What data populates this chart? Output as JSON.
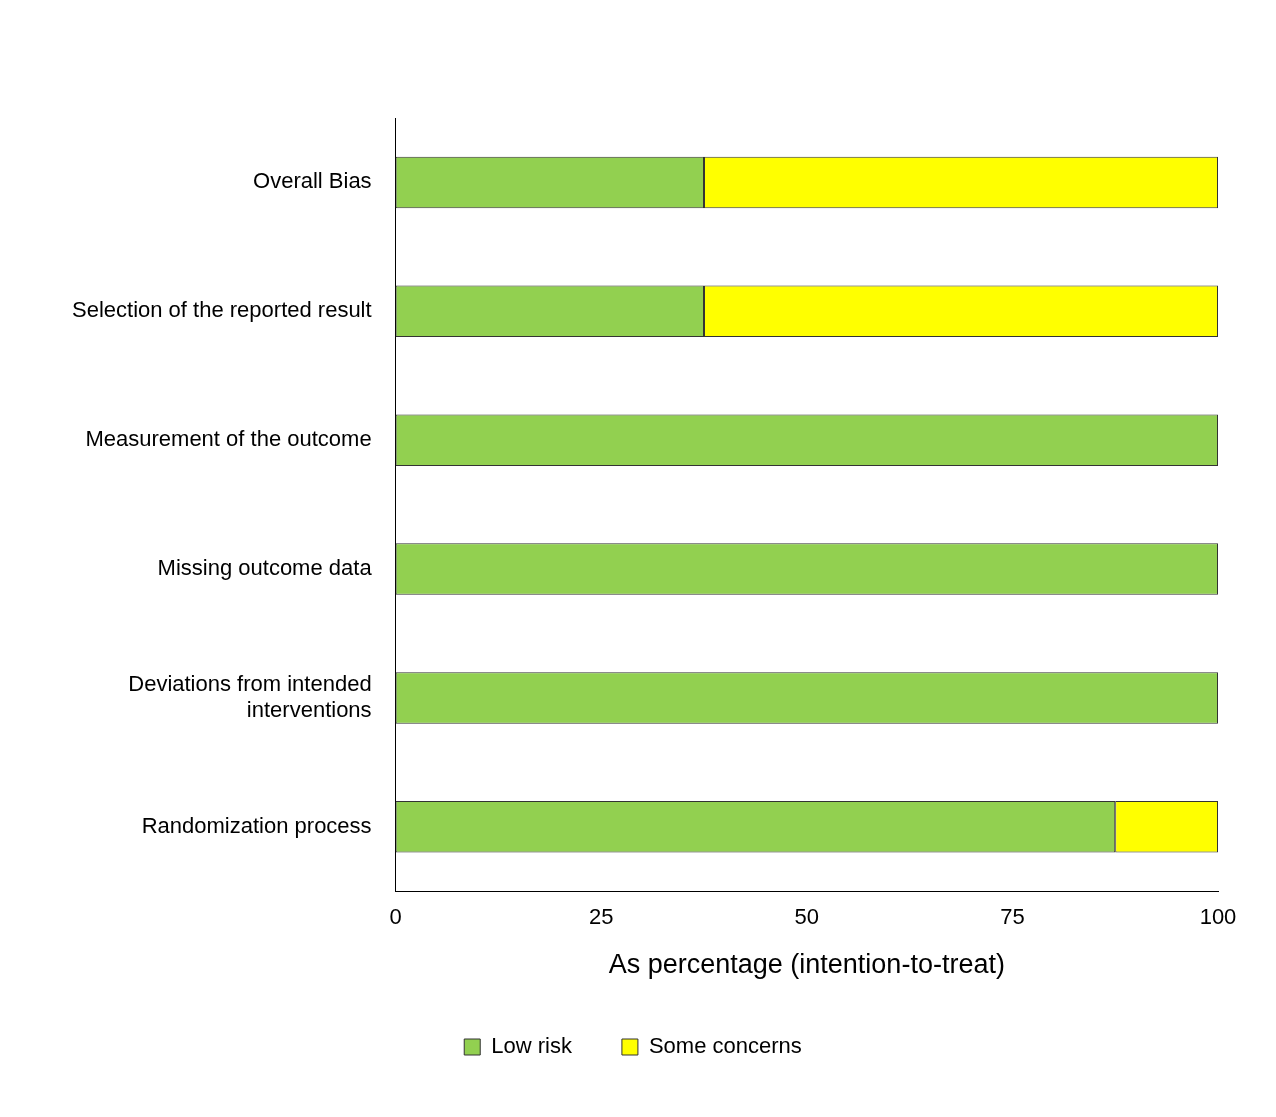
{
  "chart_data": {
    "type": "bar",
    "orientation": "horizontal",
    "stacked": true,
    "categories": [
      "Overall Bias",
      "Selection of the reported result",
      "Measurement of the outcome",
      "Missing outcome data",
      "Deviations from intended interventions",
      "Randomization process"
    ],
    "series": [
      {
        "name": "Low risk",
        "color": "#92d050",
        "values": [
          37.5,
          37.5,
          100,
          100,
          100,
          87.5
        ]
      },
      {
        "name": "Some concerns",
        "color": "#ffff00",
        "values": [
          62.5,
          62.5,
          0,
          0,
          0,
          12.5
        ]
      }
    ],
    "xlabel": "As percentage (intention-to-treat)",
    "xlim": [
      0,
      100
    ],
    "xticks": [
      0,
      25,
      50,
      75,
      100
    ],
    "grid": false,
    "legend": "bottom"
  }
}
